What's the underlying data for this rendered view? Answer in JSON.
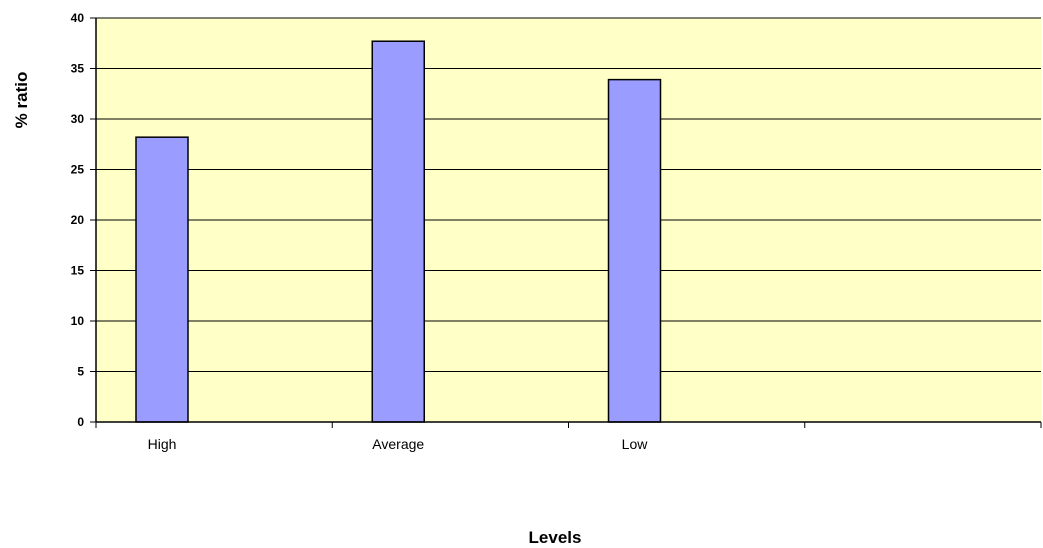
{
  "chart_data": {
    "type": "bar",
    "categories": [
      "High",
      "Average",
      "Low"
    ],
    "values": [
      28.2,
      37.7,
      33.9
    ],
    "xlabel": "Levels",
    "ylabel": "% ratio",
    "ylim": [
      0,
      40
    ],
    "yticks": [
      0,
      5,
      10,
      15,
      20,
      25,
      30,
      35,
      40
    ],
    "y_tick_labels": [
      "0",
      "5",
      "10",
      "15",
      "20",
      "25",
      "30",
      "35",
      "40"
    ],
    "x_slot_count": 4,
    "grid": true,
    "legend": "none",
    "colors": {
      "plot_background": "#ffffc8",
      "bar_fill": "#9a9cff",
      "bar_stroke": "#000000",
      "grid": "#000000"
    }
  }
}
